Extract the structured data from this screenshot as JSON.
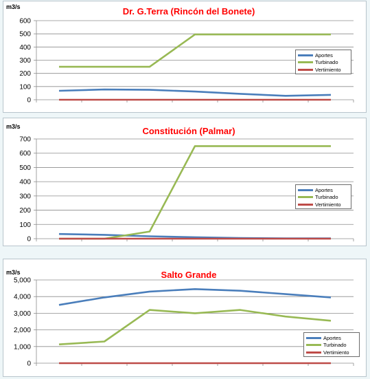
{
  "colors": {
    "aportes": "#4a7ebb",
    "turbinado": "#98b954",
    "vertimiento": "#be4b48",
    "title": "#ff0000",
    "grid": "#8c8c8c"
  },
  "chart_data": [
    {
      "type": "line",
      "title": "Dr. G.Terra (Rincón del Bonete)",
      "ylabel": "m3/s",
      "ylim": [
        0,
        600
      ],
      "yticks": [
        "0",
        "100",
        "200",
        "300",
        "400",
        "500",
        "600"
      ],
      "y_tick_values": [
        0,
        100,
        200,
        300,
        400,
        500,
        600
      ],
      "x": [
        1,
        2,
        3,
        4,
        5,
        6,
        7
      ],
      "grid": true,
      "legend_position": "right",
      "series": [
        {
          "name": "Aportes",
          "values": [
            68,
            78,
            75,
            62,
            45,
            30,
            37
          ]
        },
        {
          "name": "Turbinado",
          "values": [
            250,
            250,
            250,
            495,
            495,
            495,
            495
          ]
        },
        {
          "name": "Vertimiento",
          "values": [
            0,
            0,
            0,
            0,
            0,
            0,
            0
          ]
        }
      ]
    },
    {
      "type": "line",
      "title": "Constitución (Palmar)",
      "ylabel": "m3/s",
      "ylim": [
        0,
        700
      ],
      "yticks": [
        "0",
        "100",
        "200",
        "300",
        "400",
        "500",
        "600",
        "700"
      ],
      "y_tick_values": [
        0,
        100,
        200,
        300,
        400,
        500,
        600,
        700
      ],
      "x": [
        1,
        2,
        3,
        4,
        5,
        6,
        7
      ],
      "grid": true,
      "legend_position": "right",
      "series": [
        {
          "name": "Aportes",
          "values": [
            33,
            27,
            17,
            10,
            5,
            2,
            2
          ]
        },
        {
          "name": "Turbinado",
          "values": [
            0,
            0,
            50,
            650,
            650,
            650,
            650
          ]
        },
        {
          "name": "Vertimiento",
          "values": [
            0,
            0,
            0,
            0,
            0,
            0,
            0
          ]
        }
      ]
    },
    {
      "type": "line",
      "title": "Salto Grande",
      "ylabel": "m3/s",
      "ylim": [
        0,
        5000
      ],
      "yticks": [
        "0",
        "1,000",
        "2,000",
        "3,000",
        "4,000",
        "5,000"
      ],
      "y_tick_values": [
        0,
        1000,
        2000,
        3000,
        4000,
        5000
      ],
      "x": [
        1,
        2,
        3,
        4,
        5,
        6,
        7
      ],
      "grid": true,
      "legend_position": "right",
      "series": [
        {
          "name": "Aportes",
          "values": [
            3500,
            3950,
            4300,
            4450,
            4350,
            4150,
            3950
          ]
        },
        {
          "name": "Turbinado",
          "values": [
            1130,
            1300,
            3200,
            3000,
            3200,
            2800,
            2550
          ]
        },
        {
          "name": "Vertimiento",
          "values": [
            0,
            0,
            0,
            0,
            0,
            0,
            0
          ]
        }
      ]
    }
  ]
}
